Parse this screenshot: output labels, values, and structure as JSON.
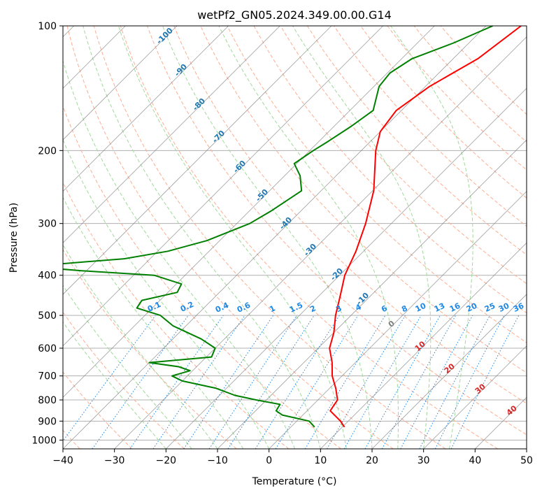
{
  "chart_data": {
    "type": "line",
    "title": "wetPf2_GN05.2024.349.00.00.G14",
    "xlabel": "Temperature (°C)",
    "ylabel": "Pressure (hPa)",
    "xlim": [
      -40,
      50
    ],
    "ylim": [
      1050,
      100
    ],
    "y_scale": "log",
    "grid": true,
    "x_ticks": [
      "−40",
      "−30",
      "−20",
      "−10",
      "0",
      "10",
      "20",
      "30",
      "40",
      "50"
    ],
    "y_ticks": [
      {
        "p": 100,
        "label": "100"
      },
      {
        "p": 200,
        "label": "200"
      },
      {
        "p": 300,
        "label": "300"
      },
      {
        "p": 400,
        "label": "400"
      },
      {
        "p": 500,
        "label": "500"
      },
      {
        "p": 600,
        "label": "600"
      },
      {
        "p": 700,
        "label": "700"
      },
      {
        "p": 800,
        "label": "800"
      },
      {
        "p": 900,
        "label": "900"
      },
      {
        "p": 1000,
        "label": "1000"
      }
    ],
    "series": [
      {
        "color": "#ff0000",
        "points": [
          [
            100,
            -33.2
          ],
          [
            120,
            -35.2
          ],
          [
            140,
            -39.2
          ],
          [
            160,
            -41.0
          ],
          [
            180,
            -40.0
          ],
          [
            200,
            -37.2
          ],
          [
            250,
            -29.8
          ],
          [
            300,
            -25.0
          ],
          [
            350,
            -21.5
          ],
          [
            400,
            -19.0
          ],
          [
            450,
            -15.8
          ],
          [
            500,
            -13.0
          ],
          [
            550,
            -10.0
          ],
          [
            600,
            -7.8
          ],
          [
            650,
            -4.5
          ],
          [
            700,
            -1.9
          ],
          [
            750,
            1.2
          ],
          [
            800,
            3.8
          ],
          [
            850,
            4.5
          ],
          [
            900,
            8.5
          ],
          [
            930,
            10.4
          ]
        ]
      },
      {
        "color": "#008000",
        "points": [
          [
            100,
            -38.7
          ],
          [
            110,
            -43.0
          ],
          [
            120,
            -48.0
          ],
          [
            130,
            -49.5
          ],
          [
            140,
            -49.0
          ],
          [
            160,
            -45.5
          ],
          [
            175,
            -46.7
          ],
          [
            190,
            -48.2
          ],
          [
            200,
            -49.3
          ],
          [
            215,
            -50.5
          ],
          [
            230,
            -47.0
          ],
          [
            250,
            -43.8
          ],
          [
            280,
            -45.8
          ],
          [
            300,
            -47.5
          ],
          [
            330,
            -52.5
          ],
          [
            350,
            -58.0
          ],
          [
            365,
            -65.0
          ],
          [
            375,
            -76.0
          ],
          [
            385,
            -77.0
          ],
          [
            390,
            -71.0
          ],
          [
            400,
            -56.0
          ],
          [
            420,
            -49.0
          ],
          [
            440,
            -48.2
          ],
          [
            460,
            -53.5
          ],
          [
            480,
            -53.0
          ],
          [
            500,
            -47.0
          ],
          [
            530,
            -42.5
          ],
          [
            570,
            -34.5
          ],
          [
            600,
            -30.0
          ],
          [
            630,
            -29.0
          ],
          [
            650,
            -40.0
          ],
          [
            665,
            -33.5
          ],
          [
            680,
            -30.5
          ],
          [
            700,
            -33.0
          ],
          [
            720,
            -30.0
          ],
          [
            750,
            -22.0
          ],
          [
            780,
            -17.0
          ],
          [
            800,
            -12.0
          ],
          [
            820,
            -6.5
          ],
          [
            850,
            -6.0
          ],
          [
            870,
            -4.0
          ],
          [
            900,
            2.4
          ],
          [
            930,
            4.6
          ]
        ]
      }
    ],
    "reference_lines": {
      "isotherms_degC": [
        -120,
        -110,
        -100,
        -90,
        -80,
        -70,
        -60,
        -50,
        -40,
        -30,
        -20,
        -10,
        0,
        10,
        20,
        30,
        40,
        50
      ],
      "dry_adiabats_degC": [
        -40,
        -30,
        -20,
        -10,
        0,
        10,
        20,
        30,
        40,
        50,
        60,
        70,
        80,
        90,
        100,
        110,
        120,
        130,
        140,
        150,
        160
      ],
      "moist_adiabats_degC": [
        -20,
        -15,
        -10,
        -5,
        0,
        5,
        10,
        15,
        20,
        25,
        30,
        35
      ],
      "mixing_ratios_gkg": [
        0.1,
        0.2,
        0.4,
        0.6,
        1,
        1.5,
        2,
        3,
        4,
        6,
        8,
        10,
        13,
        16,
        20,
        25,
        30,
        36
      ]
    },
    "isotherm_labels": [
      "-100",
      "-90",
      "-80",
      "-70",
      "-60",
      "-50",
      "-40",
      "-30",
      "-20",
      "-10"
    ],
    "theta_e_labels": [
      "0",
      "10",
      "20",
      "30",
      "40"
    ],
    "mixing_ratio_labels": [
      "0.1",
      "0.2",
      "0.4",
      "0.6",
      "1",
      "1.5",
      "2",
      "3",
      "4",
      "6",
      "8",
      "10",
      "13",
      "16",
      "20",
      "25",
      "30",
      "36"
    ],
    "colors": {
      "isotherm": "#808080",
      "isotherm_label": "#1f77b4",
      "dry_adiabat": "#fcae91",
      "moist_adiabat": "#a1d99b",
      "mixing_ratio": "#1e88e5",
      "theta_e_label_zero": "#808080",
      "theta_e_label": "#d62728",
      "hgrid": "#b0b0b0"
    }
  }
}
